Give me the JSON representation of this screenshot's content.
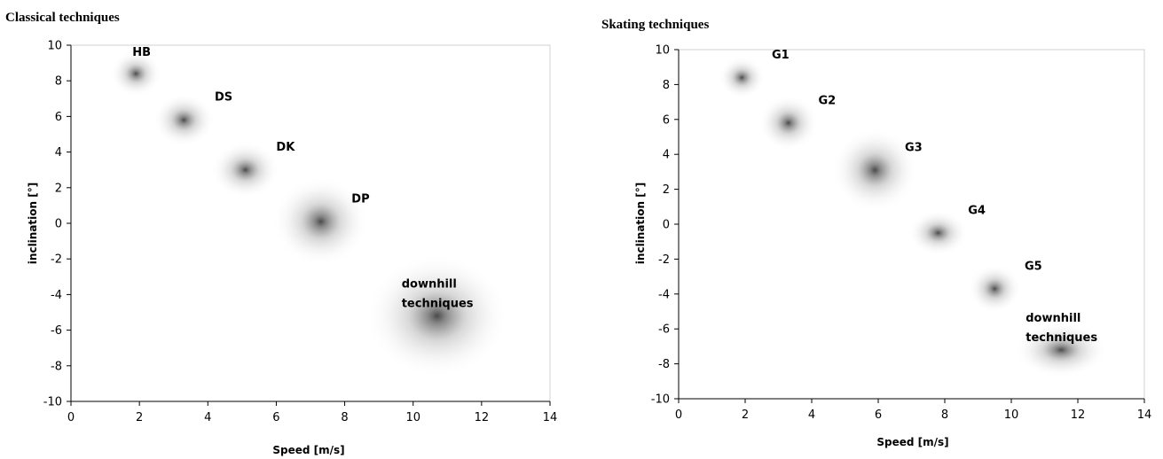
{
  "chart_data": [
    {
      "type": "scatter",
      "title": "Classical techniques",
      "xlabel": "Speed [m/s]",
      "ylabel": "inclination [°]",
      "xlim": [
        0,
        14
      ],
      "ylim": [
        -10,
        10
      ],
      "xticks": [
        "0",
        "2",
        "4",
        "6",
        "8",
        "10",
        "12",
        "14"
      ],
      "yticks": [
        "10",
        "8",
        "6",
        "4",
        "2",
        "0",
        "-2",
        "-4",
        "-6",
        "-8",
        "-10"
      ],
      "grid": false,
      "points": [
        {
          "label": "HB",
          "x": 1.9,
          "y": 8.4,
          "sx": 0.75,
          "sy": 1.3,
          "label_lines": [
            "HB"
          ]
        },
        {
          "label": "DS",
          "x": 3.3,
          "y": 5.8,
          "sx": 0.9,
          "sy": 1.5,
          "label_lines": [
            "DS"
          ]
        },
        {
          "label": "DK",
          "x": 5.1,
          "y": 3.0,
          "sx": 1.0,
          "sy": 1.6,
          "label_lines": [
            "DK"
          ]
        },
        {
          "label": "DP",
          "x": 7.3,
          "y": 0.1,
          "sx": 1.4,
          "sy": 2.5,
          "label_lines": [
            "DP"
          ]
        },
        {
          "label": "downhill techniques",
          "x": 10.7,
          "y": -5.2,
          "sx": 2.1,
          "sy": 3.5,
          "label_lines": [
            "downhill",
            "techniques"
          ]
        }
      ]
    },
    {
      "type": "scatter",
      "title": "Skating techniques",
      "xlabel": "Speed [m/s]",
      "ylabel": "inclination [°]",
      "xlim": [
        0,
        14
      ],
      "ylim": [
        -10,
        10
      ],
      "xticks": [
        "0",
        "2",
        "4",
        "6",
        "8",
        "10",
        "12",
        "14"
      ],
      "yticks": [
        "10",
        "8",
        "6",
        "4",
        "2",
        "0",
        "-2",
        "-4",
        "-6",
        "-8",
        "-10"
      ],
      "grid": false,
      "points": [
        {
          "label": "G1",
          "x": 1.9,
          "y": 8.4,
          "sx": 0.7,
          "sy": 1.2,
          "label_lines": [
            "G1"
          ]
        },
        {
          "label": "G2",
          "x": 3.3,
          "y": 5.8,
          "sx": 0.9,
          "sy": 1.6,
          "label_lines": [
            "G2"
          ]
        },
        {
          "label": "G3",
          "x": 5.9,
          "y": 3.1,
          "sx": 1.3,
          "sy": 2.4,
          "label_lines": [
            "G3"
          ]
        },
        {
          "label": "G4",
          "x": 7.8,
          "y": -0.5,
          "sx": 0.9,
          "sy": 1.3,
          "label_lines": [
            "G4"
          ]
        },
        {
          "label": "G5",
          "x": 9.5,
          "y": -3.7,
          "sx": 0.8,
          "sy": 1.4,
          "label_lines": [
            "G5"
          ]
        },
        {
          "label": "downhill techniques",
          "x": 11.5,
          "y": -7.2,
          "sx": 1.4,
          "sy": 1.6,
          "label_lines": [
            "downhill",
            "techniques"
          ]
        }
      ]
    }
  ]
}
